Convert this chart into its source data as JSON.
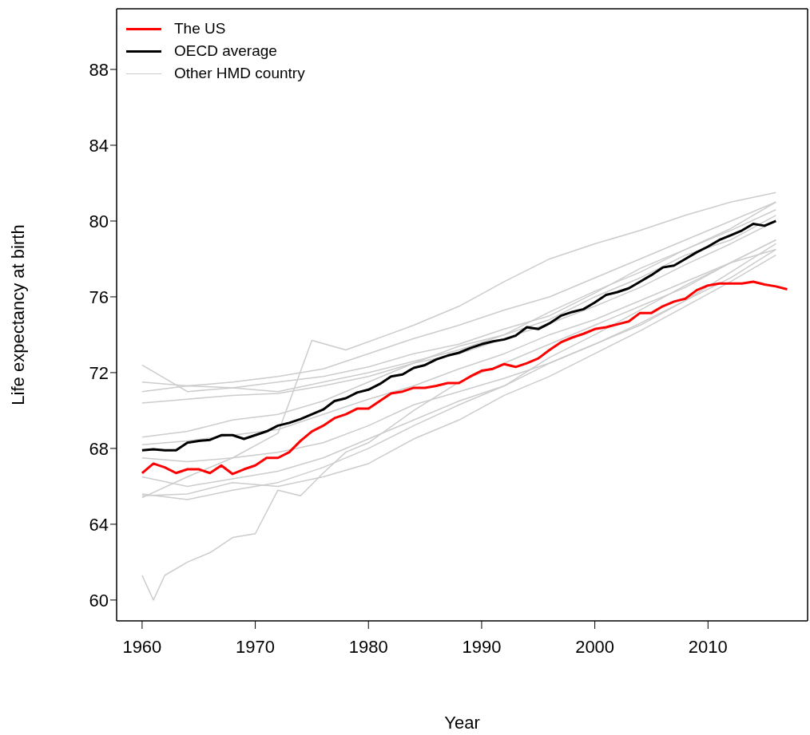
{
  "chart_data": {
    "type": "line",
    "xlabel": "Year",
    "ylabel": "Life expectancy at birth",
    "xlim": [
      1957.75,
      2018.8
    ],
    "ylim": [
      58.9,
      91.2
    ],
    "xticks": [
      1960,
      1970,
      1980,
      1990,
      2000,
      2010
    ],
    "yticks": [
      60,
      64,
      68,
      72,
      76,
      80,
      84,
      88
    ],
    "legend": "top left",
    "marker": "none",
    "line_style": "solid",
    "series": [
      {
        "name": "Other HMD country",
        "color": "#cccccc",
        "x": [
          1960,
          1964,
          1968,
          1972,
          1976,
          1980,
          1984,
          1988,
          1992,
          1996,
          2000,
          2004,
          2008,
          2012,
          2016
        ],
        "values": [
          71.5,
          71.3,
          71.5,
          71.8,
          72.2,
          73.0,
          73.8,
          74.5,
          75.3,
          76.0,
          77.0,
          78.0,
          79.0,
          80.0,
          81.0
        ]
      },
      {
        "color": "#cccccc",
        "x": [
          1960,
          1964,
          1968,
          1972,
          1976,
          1980,
          1984,
          1988,
          1992,
          1996,
          2000,
          2004,
          2008,
          2012,
          2016
        ],
        "values": [
          72.4,
          71.0,
          71.2,
          71.5,
          71.8,
          72.3,
          73.0,
          73.5,
          74.3,
          75.0,
          76.2,
          77.5,
          78.5,
          79.5,
          80.6
        ]
      },
      {
        "color": "#cccccc",
        "x": [
          1960,
          1964,
          1968,
          1972,
          1976,
          1980,
          1984,
          1988,
          1992,
          1996,
          2000,
          2004,
          2008,
          2012,
          2016
        ],
        "values": [
          71.0,
          71.3,
          71.2,
          71.0,
          71.5,
          72.0,
          72.6,
          73.2,
          74.0,
          74.8,
          76.0,
          77.0,
          78.2,
          79.0,
          80.3
        ]
      },
      {
        "color": "#cccccc",
        "x": [
          1960,
          1964,
          1968,
          1972,
          1976,
          1980,
          1984,
          1988,
          1992,
          1996,
          2000,
          2004,
          2008,
          2012,
          2016
        ],
        "values": [
          70.4,
          70.6,
          70.8,
          70.9,
          71.3,
          71.8,
          72.5,
          73.0,
          73.8,
          74.6,
          75.5,
          76.5,
          77.7,
          78.8,
          80.0
        ]
      },
      {
        "color": "#cccccc",
        "x": [
          1960,
          1964,
          1968,
          1972,
          1976,
          1980,
          1984,
          1988,
          1992,
          1996,
          2000,
          2004,
          2008,
          2012,
          2016
        ],
        "values": [
          68.6,
          68.9,
          69.5,
          69.8,
          70.5,
          71.5,
          72.5,
          73.4,
          74.0,
          75.2,
          76.3,
          77.3,
          78.5,
          79.6,
          81.0
        ]
      },
      {
        "color": "#cccccc",
        "x": [
          1960,
          1964,
          1968,
          1972,
          1975,
          1978,
          1984,
          1988,
          1992,
          1996,
          2000,
          2004,
          2008,
          2012,
          2016
        ],
        "values": [
          65.4,
          66.5,
          67.5,
          68.8,
          73.7,
          73.2,
          74.5,
          75.5,
          76.8,
          78.0,
          78.8,
          79.5,
          80.3,
          81.0,
          81.5
        ]
      },
      {
        "color": "#cccccc",
        "x": [
          1960,
          1964,
          1968,
          1972,
          1976,
          1980,
          1984,
          1988,
          1992,
          1996,
          2000,
          2004,
          2008,
          2012,
          2016
        ],
        "values": [
          68.2,
          68.4,
          68.7,
          69.0,
          69.8,
          70.6,
          71.3,
          72.2,
          73.0,
          74.0,
          74.8,
          75.8,
          76.8,
          77.8,
          79.0
        ]
      },
      {
        "color": "#cccccc",
        "x": [
          1960,
          1964,
          1968,
          1972,
          1976,
          1980,
          1984,
          1988,
          1992,
          1996,
          2000,
          2004,
          2008,
          2012,
          2016
        ],
        "values": [
          67.5,
          67.3,
          67.5,
          67.8,
          68.3,
          69.2,
          70.3,
          71.0,
          71.7,
          72.5,
          73.5,
          74.6,
          75.8,
          77.3,
          78.8
        ]
      },
      {
        "color": "#cccccc",
        "x": [
          1960,
          1964,
          1968,
          1972,
          1976,
          1980,
          1984,
          1988,
          1992,
          1996,
          2000,
          2004,
          2008,
          2012,
          2016
        ],
        "values": [
          66.5,
          66.0,
          66.4,
          66.8,
          67.5,
          68.5,
          69.5,
          70.5,
          71.3,
          72.5,
          73.5,
          74.5,
          75.8,
          77.0,
          78.5
        ]
      },
      {
        "color": "#cccccc",
        "x": [
          1960,
          1964,
          1968,
          1972,
          1976,
          1980,
          1984,
          1988,
          1992,
          1996,
          2000,
          2004,
          2008,
          2012,
          2016
        ],
        "values": [
          65.5,
          65.6,
          66.2,
          66.0,
          66.5,
          67.2,
          68.5,
          69.5,
          70.8,
          71.8,
          73.0,
          74.2,
          75.5,
          76.8,
          78.2
        ]
      },
      {
        "color": "#cccccc",
        "x": [
          1960,
          1961,
          1962,
          1964,
          1966,
          1968,
          1970,
          1972,
          1974,
          1976,
          1978,
          1980,
          1984,
          1988,
          1992,
          1996,
          2000,
          2004,
          2008,
          2012,
          2016
        ],
        "values": [
          61.3,
          60.0,
          61.3,
          62.0,
          62.5,
          63.3,
          63.5,
          65.8,
          65.5,
          66.7,
          67.8,
          68.3,
          70.0,
          71.5,
          72.5,
          73.5,
          74.5,
          75.5,
          76.5,
          77.8,
          78.5
        ]
      },
      {
        "color": "#cccccc",
        "x": [
          1960,
          1964,
          1968,
          1972,
          1976,
          1980,
          1984,
          1988,
          1992,
          1996,
          2000,
          2004,
          2008,
          2012,
          2016
        ],
        "values": [
          65.6,
          65.3,
          65.8,
          66.2,
          67.0,
          68.0,
          69.2,
          70.3,
          71.3,
          72.8,
          74.0,
          75.3,
          76.6,
          77.8,
          79.0
        ]
      },
      {
        "name": "The US",
        "color": "#ff0000",
        "x": [
          1960,
          1961,
          1962,
          1963,
          1964,
          1965,
          1966,
          1967,
          1968,
          1969,
          1970,
          1971,
          1972,
          1973,
          1974,
          1975,
          1976,
          1977,
          1978,
          1979,
          1980,
          1981,
          1982,
          1983,
          1984,
          1985,
          1986,
          1987,
          1988,
          1989,
          1990,
          1991,
          1992,
          1993,
          1994,
          1995,
          1996,
          1997,
          1998,
          1999,
          2000,
          2001,
          2002,
          2003,
          2004,
          2005,
          2006,
          2007,
          2008,
          2009,
          2010,
          2011,
          2012,
          2013,
          2014,
          2015,
          2016,
          2017
        ],
        "values": [
          66.7,
          67.2,
          67.0,
          66.7,
          66.9,
          66.9,
          66.7,
          67.1,
          66.65,
          66.9,
          67.1,
          67.5,
          67.5,
          67.8,
          68.4,
          68.9,
          69.2,
          69.6,
          69.8,
          70.1,
          70.1,
          70.5,
          70.9,
          71.0,
          71.2,
          71.2,
          71.3,
          71.45,
          71.45,
          71.8,
          72.1,
          72.2,
          72.45,
          72.3,
          72.5,
          72.75,
          73.2,
          73.6,
          73.85,
          74.05,
          74.3,
          74.4,
          74.55,
          74.7,
          75.15,
          75.15,
          75.5,
          75.75,
          75.9,
          76.35,
          76.6,
          76.7,
          76.7,
          76.7,
          76.8,
          76.65,
          76.55,
          76.4
        ]
      },
      {
        "name": "OECD average",
        "color": "#000000",
        "x": [
          1960,
          1961,
          1962,
          1963,
          1964,
          1965,
          1966,
          1967,
          1968,
          1969,
          1970,
          1971,
          1972,
          1973,
          1974,
          1975,
          1976,
          1977,
          1978,
          1979,
          1980,
          1981,
          1982,
          1983,
          1984,
          1985,
          1986,
          1987,
          1988,
          1989,
          1990,
          1991,
          1992,
          1993,
          1994,
          1995,
          1996,
          1997,
          1998,
          1999,
          2000,
          2001,
          2002,
          2003,
          2004,
          2005,
          2006,
          2007,
          2008,
          2009,
          2010,
          2011,
          2012,
          2013,
          2014,
          2015,
          2016
        ],
        "values": [
          67.9,
          67.95,
          67.9,
          67.9,
          68.3,
          68.4,
          68.45,
          68.7,
          68.7,
          68.5,
          68.7,
          68.9,
          69.2,
          69.35,
          69.55,
          69.8,
          70.05,
          70.5,
          70.65,
          70.95,
          71.1,
          71.4,
          71.8,
          71.9,
          72.25,
          72.4,
          72.7,
          72.9,
          73.05,
          73.3,
          73.5,
          73.65,
          73.75,
          73.95,
          74.4,
          74.3,
          74.6,
          75.0,
          75.2,
          75.35,
          75.7,
          76.1,
          76.25,
          76.45,
          76.8,
          77.15,
          77.55,
          77.65,
          78.0,
          78.35,
          78.65,
          79.0,
          79.25,
          79.5,
          79.85,
          79.75,
          80.0
        ]
      }
    ]
  }
}
